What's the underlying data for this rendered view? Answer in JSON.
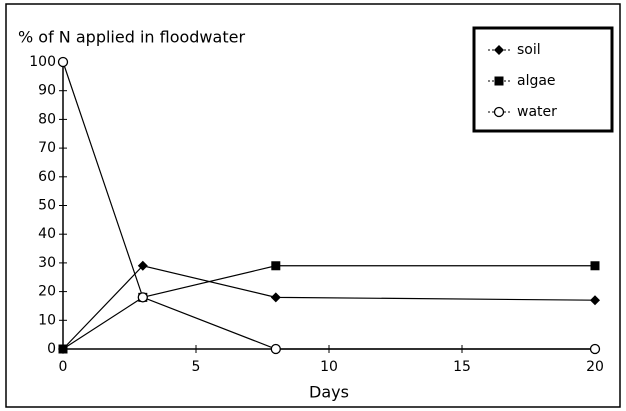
{
  "chart_data": {
    "type": "line",
    "title": "% of  N applied in floodwater",
    "x_label": "Days",
    "x": [
      0,
      3,
      8,
      20
    ],
    "series": [
      {
        "name": "soil",
        "color": "#000000",
        "marker": "diamond",
        "values": [
          0,
          29,
          18,
          17
        ]
      },
      {
        "name": "algae",
        "color": "#000000",
        "marker": "square",
        "values": [
          0,
          18,
          29,
          29
        ]
      },
      {
        "name": "water",
        "color": "#000000",
        "marker": "circle",
        "values": [
          100,
          18,
          0,
          0
        ]
      }
    ],
    "xlim": [
      0,
      20
    ],
    "xticks": [
      0,
      5,
      10,
      15,
      20
    ],
    "ylim": [
      0,
      100
    ],
    "yticks": [
      0,
      10,
      20,
      30,
      40,
      50,
      60,
      70,
      80,
      90,
      100
    ],
    "legend": "upper right"
  }
}
